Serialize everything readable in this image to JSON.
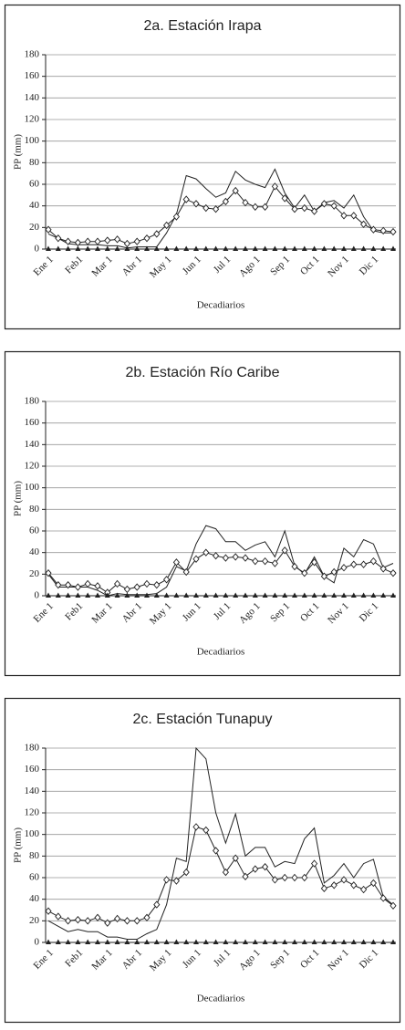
{
  "chart_data": [
    {
      "type": "line",
      "title": "2a. Estación Irapa",
      "y_label": "PP (mm)",
      "x_label": "Decadiarios",
      "categories": [
        "Ene 1",
        null,
        null,
        "Feb1",
        null,
        null,
        "Mar 1",
        null,
        null,
        "Abr 1",
        null,
        null,
        "May 1",
        null,
        null,
        "Jun 1",
        null,
        null,
        "Jul 1",
        null,
        null,
        "Ago 1",
        null,
        null,
        "Sep 1",
        null,
        null,
        "Oct 1",
        null,
        null,
        "Nov 1",
        null,
        null,
        "Dic 1",
        null,
        null
      ],
      "ylim": [
        0,
        180
      ],
      "yticks": [
        0,
        20,
        40,
        60,
        80,
        100,
        120,
        140,
        160,
        180
      ],
      "grid": true,
      "series": [
        {
          "color": "#222222",
          "marker": "none",
          "values": [
            14,
            10,
            5,
            4,
            4,
            4,
            3,
            3,
            1,
            2,
            2,
            2,
            15,
            32,
            68,
            65,
            56,
            48,
            52,
            72,
            64,
            60,
            57,
            74,
            52,
            38,
            50,
            35,
            43,
            45,
            38,
            50,
            30,
            17,
            15,
            15
          ]
        },
        {
          "color": "#222222",
          "marker": "diamond",
          "values": [
            18,
            10,
            7,
            6,
            7,
            7,
            8,
            9,
            5,
            7,
            10,
            14,
            22,
            30,
            46,
            42,
            38,
            37,
            44,
            54,
            43,
            39,
            39,
            58,
            47,
            37,
            38,
            35,
            42,
            40,
            31,
            31,
            23,
            18,
            17,
            16
          ]
        },
        {
          "color": "#222222",
          "marker": "triangle",
          "values": [
            0,
            0,
            0,
            0,
            0,
            0,
            0,
            0,
            0,
            0,
            0,
            0,
            0,
            0,
            0,
            0,
            0,
            0,
            0,
            0,
            0,
            0,
            0,
            0,
            0,
            0,
            0,
            0,
            0,
            0,
            0,
            0,
            0,
            0,
            0,
            0
          ]
        }
      ]
    },
    {
      "type": "line",
      "title": "2b. Estación Río Caribe",
      "y_label": "PP (mm)",
      "x_label": "Decadiarios",
      "categories": [
        "Ene 1",
        null,
        null,
        "Feb1",
        null,
        null,
        "Mar 1",
        null,
        null,
        "Abr 1",
        null,
        null,
        "May 1",
        null,
        null,
        "Jun 1",
        null,
        null,
        "Jul 1",
        null,
        null,
        "Ago 1",
        null,
        null,
        "Sep 1",
        null,
        null,
        "Oct 1",
        null,
        null,
        "Nov 1",
        null,
        null,
        "Dic 1",
        null,
        null
      ],
      "ylim": [
        0,
        180
      ],
      "yticks": [
        0,
        20,
        40,
        60,
        80,
        100,
        120,
        140,
        160,
        180
      ],
      "grid": true,
      "series": [
        {
          "color": "#222222",
          "marker": "none",
          "values": [
            20,
            8,
            8,
            8,
            8,
            5,
            0,
            2,
            1,
            1,
            1,
            2,
            8,
            27,
            23,
            48,
            65,
            62,
            50,
            50,
            42,
            47,
            50,
            36,
            60,
            28,
            20,
            36,
            18,
            12,
            44,
            36,
            52,
            48,
            26,
            30
          ]
        },
        {
          "color": "#222222",
          "marker": "diamond",
          "values": [
            21,
            10,
            10,
            8,
            11,
            9,
            3,
            11,
            6,
            8,
            11,
            10,
            15,
            31,
            22,
            34,
            40,
            37,
            35,
            36,
            35,
            32,
            32,
            30,
            42,
            27,
            21,
            31,
            18,
            22,
            26,
            29,
            29,
            32,
            25,
            21
          ]
        },
        {
          "color": "#222222",
          "marker": "triangle",
          "values": [
            0,
            0,
            0,
            0,
            0,
            0,
            0,
            0,
            0,
            0,
            0,
            0,
            0,
            0,
            0,
            0,
            0,
            0,
            0,
            0,
            0,
            0,
            0,
            0,
            0,
            0,
            0,
            0,
            0,
            0,
            0,
            0,
            0,
            0,
            0,
            0
          ]
        }
      ]
    },
    {
      "type": "line",
      "title": "2c. Estación Tunapuy",
      "y_label": "PP (mm)",
      "x_label": "Decadiarios",
      "categories": [
        "Ene 1",
        null,
        null,
        "Feb1",
        null,
        null,
        "Mar 1",
        null,
        null,
        "Abr 1",
        null,
        null,
        "May 1",
        null,
        null,
        "Jun 1",
        null,
        null,
        "Jul 1",
        null,
        null,
        "Ago 1",
        null,
        null,
        "Sep 1",
        null,
        null,
        "Oct 1",
        null,
        null,
        "Nov 1",
        null,
        null,
        "Dic 1",
        null,
        null
      ],
      "ylim": [
        0,
        180
      ],
      "yticks": [
        0,
        20,
        40,
        60,
        80,
        100,
        120,
        140,
        160,
        180
      ],
      "grid": true,
      "series": [
        {
          "color": "#222222",
          "marker": "none",
          "values": [
            20,
            15,
            10,
            12,
            10,
            10,
            5,
            5,
            3,
            3,
            8,
            12,
            35,
            78,
            75,
            180,
            170,
            120,
            92,
            119,
            80,
            88,
            88,
            70,
            75,
            73,
            96,
            106,
            55,
            62,
            73,
            60,
            73,
            77,
            42,
            35
          ]
        },
        {
          "color": "#222222",
          "marker": "diamond",
          "values": [
            29,
            24,
            20,
            21,
            20,
            23,
            18,
            22,
            20,
            20,
            23,
            35,
            58,
            57,
            65,
            107,
            104,
            85,
            65,
            78,
            61,
            68,
            70,
            58,
            60,
            60,
            60,
            73,
            50,
            53,
            58,
            53,
            49,
            55,
            41,
            34
          ]
        },
        {
          "color": "#222222",
          "marker": "triangle",
          "values": [
            0,
            0,
            0,
            0,
            0,
            0,
            0,
            0,
            0,
            0,
            0,
            0,
            0,
            0,
            0,
            0,
            0,
            0,
            0,
            0,
            0,
            0,
            0,
            0,
            0,
            0,
            0,
            0,
            0,
            0,
            0,
            0,
            0,
            0,
            0,
            0
          ]
        }
      ]
    }
  ]
}
